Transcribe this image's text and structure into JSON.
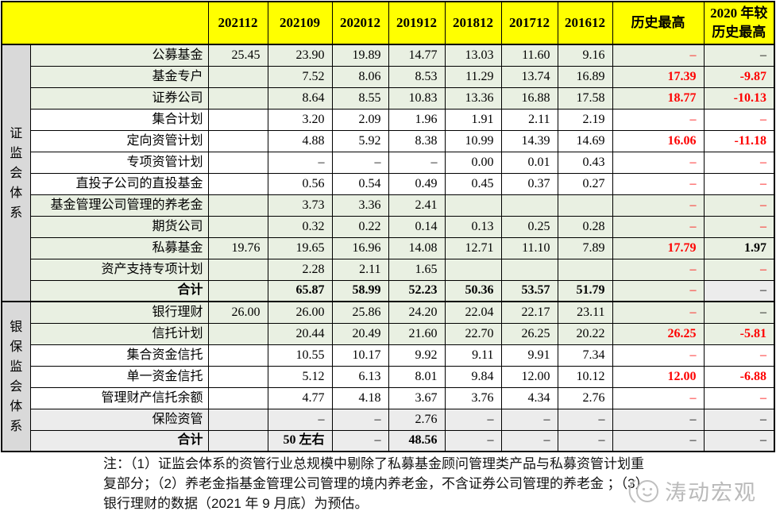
{
  "table": {
    "columns": [
      "202112",
      "202109",
      "202012",
      "201912",
      "201812",
      "201712",
      "201612",
      "历史最高",
      "2020 年较\n历史最高"
    ],
    "groups": [
      {
        "label": "证监会体系",
        "rows": [
          {
            "label": "公募基金",
            "bold": false,
            "shade": "green",
            "values": [
              "25.45",
              "23.90",
              "19.89",
              "14.77",
              "13.03",
              "11.60",
              "9.16",
              "–",
              "–"
            ],
            "styles": [
              "",
              "",
              "",
              "",
              "",
              "",
              "",
              "r",
              ""
            ]
          },
          {
            "label": "基金专户",
            "bold": false,
            "shade": "green",
            "values": [
              "",
              "7.52",
              "8.06",
              "8.53",
              "11.29",
              "13.74",
              "16.89",
              "17.39",
              "-9.87"
            ],
            "styles": [
              "",
              "",
              "",
              "",
              "",
              "",
              "",
              "rb",
              "rb"
            ]
          },
          {
            "label": "证券公司",
            "bold": false,
            "shade": "green",
            "values": [
              "",
              "8.64",
              "8.55",
              "10.83",
              "13.36",
              "16.88",
              "17.58",
              "18.77",
              "-10.13"
            ],
            "styles": [
              "",
              "",
              "",
              "",
              "",
              "",
              "",
              "rb",
              "rb"
            ]
          },
          {
            "label": "集合计划",
            "bold": false,
            "shade": "white",
            "values": [
              "",
              "3.20",
              "2.09",
              "1.96",
              "1.91",
              "2.11",
              "2.19",
              "–",
              "–"
            ],
            "styles": [
              "",
              "",
              "",
              "",
              "",
              "",
              "",
              "r",
              "r"
            ]
          },
          {
            "label": "定向资管计划",
            "bold": false,
            "shade": "white",
            "values": [
              "",
              "4.88",
              "5.92",
              "8.38",
              "10.99",
              "14.39",
              "14.69",
              "16.06",
              "-11.18"
            ],
            "styles": [
              "",
              "",
              "",
              "",
              "",
              "",
              "",
              "rb",
              "rb"
            ]
          },
          {
            "label": "专项资管计划",
            "bold": false,
            "shade": "white",
            "values": [
              "",
              "–",
              "–",
              "–",
              "0.00",
              "0.01",
              "0.43",
              "–",
              "–"
            ],
            "styles": [
              "",
              "",
              "",
              "",
              "",
              "",
              "",
              "r",
              "r"
            ]
          },
          {
            "label": "直投子公司的直投基金",
            "bold": false,
            "shade": "white",
            "values": [
              "",
              "0.56",
              "0.54",
              "0.49",
              "0.45",
              "0.37",
              "0.27",
              "–",
              "–"
            ],
            "styles": [
              "",
              "",
              "",
              "",
              "",
              "",
              "",
              "r",
              "r"
            ]
          },
          {
            "label": "基金管理公司管理的养老金",
            "bold": false,
            "shade": "green",
            "values": [
              "",
              "3.73",
              "3.36",
              "2.41",
              "",
              "",
              "",
              "–",
              "–"
            ],
            "styles": [
              "",
              "",
              "",
              "",
              "",
              "",
              "",
              "r",
              "r"
            ]
          },
          {
            "label": "期货公司",
            "bold": false,
            "shade": "green",
            "values": [
              "",
              "0.32",
              "0.22",
              "0.14",
              "0.13",
              "0.25",
              "0.28",
              "–",
              "–"
            ],
            "styles": [
              "",
              "",
              "",
              "",
              "",
              "",
              "",
              "r",
              "r"
            ]
          },
          {
            "label": "私募基金",
            "bold": false,
            "shade": "green",
            "values": [
              "19.76",
              "19.65",
              "16.96",
              "14.08",
              "12.71",
              "11.10",
              "7.89",
              "17.79",
              "1.97"
            ],
            "styles": [
              "",
              "",
              "",
              "",
              "",
              "",
              "",
              "rb",
              "b"
            ]
          },
          {
            "label": "资产支持专项计划",
            "bold": false,
            "shade": "green",
            "values": [
              "",
              "2.28",
              "2.11",
              "1.65",
              "",
              "",
              "",
              "–",
              "–"
            ],
            "styles": [
              "",
              "",
              "",
              "",
              "",
              "",
              "",
              "r",
              "r"
            ]
          },
          {
            "label": "合计",
            "bold": true,
            "shade": "green",
            "values": [
              "",
              "65.87",
              "58.99",
              "52.23",
              "50.36",
              "53.57",
              "51.79",
              "–",
              "–"
            ],
            "styles": [
              "",
              "b",
              "b",
              "b",
              "b",
              "b",
              "b",
              "r",
              "g"
            ]
          }
        ]
      },
      {
        "label": "银保监会体系",
        "rows": [
          {
            "label": "银行理财",
            "bold": false,
            "shade": "green",
            "values": [
              "26.00",
              "26.00",
              "25.86",
              "24.20",
              "22.04",
              "22.17",
              "23.11",
              "–",
              "–"
            ],
            "styles": [
              "",
              "",
              "",
              "",
              "",
              "",
              "",
              "r",
              ""
            ]
          },
          {
            "label": "信托计划",
            "bold": false,
            "shade": "green",
            "values": [
              "",
              "20.44",
              "20.49",
              "21.60",
              "22.70",
              "26.25",
              "20.22",
              "26.25",
              "-5.81"
            ],
            "styles": [
              "",
              "",
              "",
              "",
              "",
              "",
              "",
              "rb",
              "rb"
            ]
          },
          {
            "label": "集合资金信托",
            "bold": false,
            "shade": "white",
            "values": [
              "",
              "10.55",
              "10.17",
              "9.92",
              "9.11",
              "9.91",
              "7.34",
              "–",
              "–"
            ],
            "styles": [
              "",
              "",
              "",
              "",
              "",
              "",
              "",
              "r",
              "r"
            ]
          },
          {
            "label": "单一资金信托",
            "bold": false,
            "shade": "white",
            "values": [
              "",
              "5.12",
              "6.13",
              "8.01",
              "9.84",
              "12.00",
              "10.12",
              "12.00",
              "-6.88"
            ],
            "styles": [
              "",
              "",
              "",
              "",
              "",
              "",
              "",
              "rb",
              "rb"
            ]
          },
          {
            "label": "管理财产信托余额",
            "bold": false,
            "shade": "white",
            "values": [
              "",
              "4.77",
              "4.18",
              "3.67",
              "3.76",
              "4.34",
              "2.76",
              "–",
              "–"
            ],
            "styles": [
              "",
              "",
              "",
              "",
              "",
              "",
              "",
              "r",
              "r"
            ]
          },
          {
            "label": "保险资管",
            "bold": false,
            "shade": "grayrow",
            "values": [
              "",
              "–",
              "–",
              "2.76",
              "–",
              "–",
              "–",
              "–",
              "–"
            ],
            "styles": [
              "",
              "",
              "",
              "",
              "",
              "",
              "",
              "",
              ""
            ]
          },
          {
            "label": "合计",
            "bold": true,
            "shade": "grayrow",
            "values": [
              "",
              "50 左右",
              "–",
              "48.56",
              "–",
              "–",
              "–",
              "–",
              "–"
            ],
            "styles": [
              "",
              "b",
              "",
              "b",
              "",
              "",
              "",
              "",
              ""
            ]
          }
        ]
      }
    ]
  },
  "note": {
    "line1": "注：（1）证监会体系的资管行业总规模中剔除了私募基金顾问管理类产品与私募资管计划重",
    "line2": "复部分；（2）养老金指基金管理公司管理的境内养老金，不含证券公司管理的养老金 ；（3）",
    "line3": "银行理财的数据（2021 年 9 月底）为预估。"
  },
  "watermark": {
    "text": "涛动宏观"
  },
  "colors": {
    "header_bg": "#ffff00",
    "green_row": "#e9f0e2",
    "white_row": "#ffffff",
    "gray_row": "#ececec",
    "group_column_bg": "#d9d9d9",
    "negative_red": "#fe0000",
    "border": "#000000",
    "watermark_gray": "#b3b3b3"
  }
}
